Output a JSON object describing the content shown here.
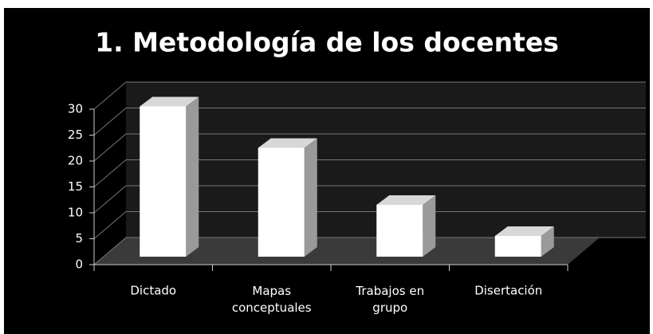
{
  "chart_data": {
    "type": "bar3d",
    "title": "1. Metodología de los docentes",
    "categories": [
      "Dictado",
      "Mapas conceptuales",
      "Trabajos en grupo",
      "Disertación"
    ],
    "values": [
      29,
      21,
      10,
      4
    ],
    "color": "#ffffff",
    "ylim": [
      0,
      30
    ],
    "yticks": [
      0,
      5,
      10,
      15,
      20,
      25,
      30
    ],
    "grid": true
  }
}
